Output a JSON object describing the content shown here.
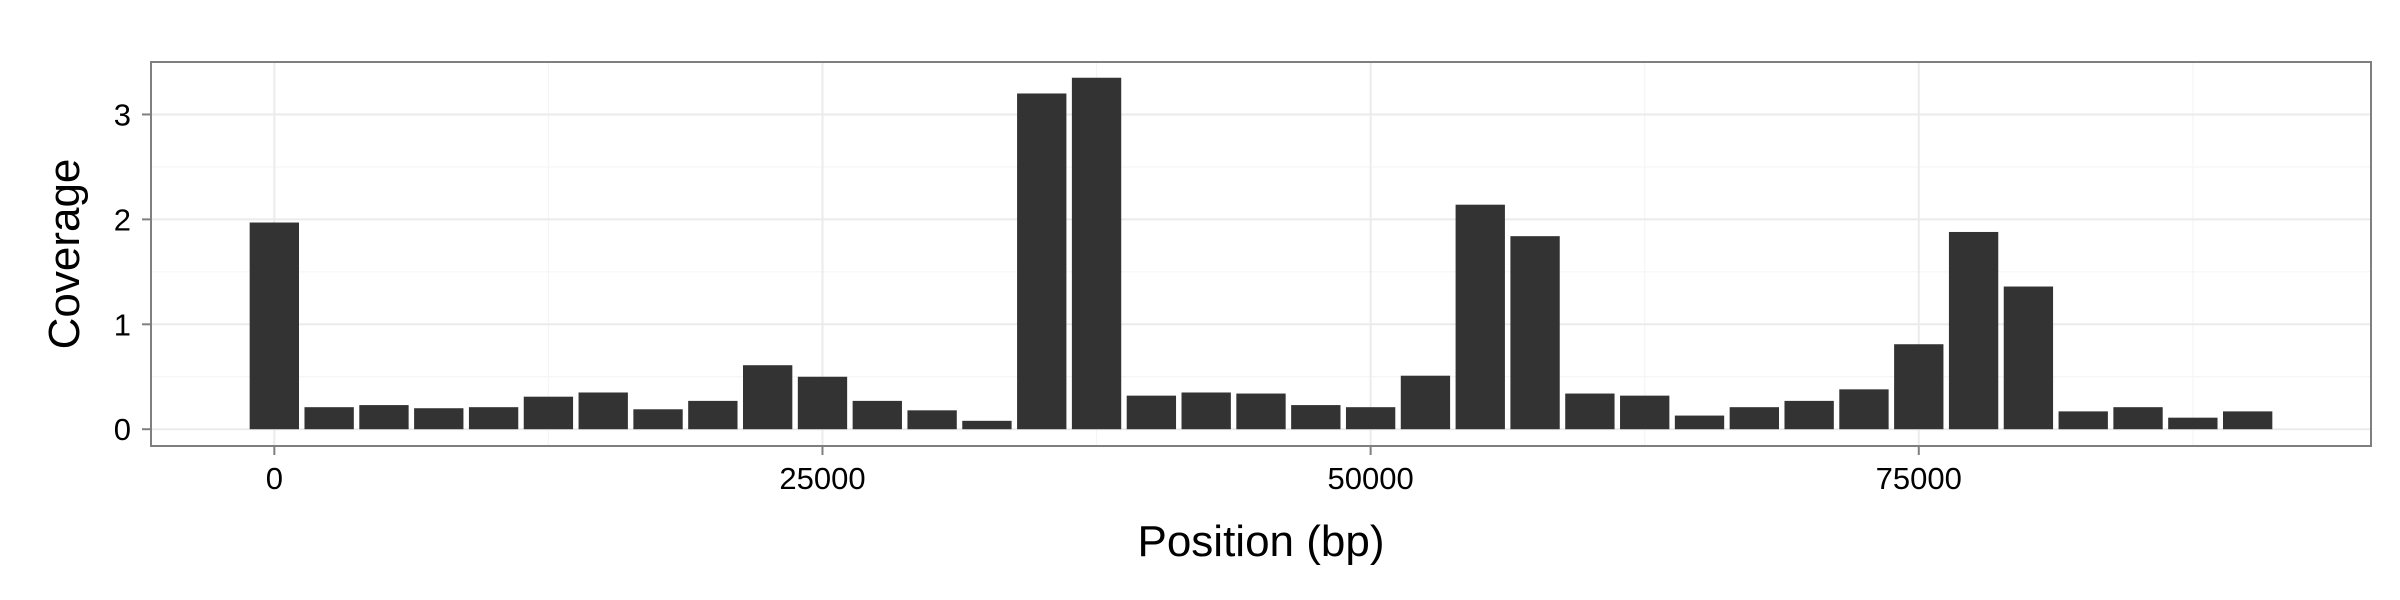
{
  "chart_data": {
    "type": "bar",
    "title": "",
    "xlabel": "Position (bp)",
    "ylabel": "Coverage",
    "x": [
      0,
      2500,
      5000,
      7500,
      10000,
      12500,
      15000,
      17500,
      20000,
      22500,
      25000,
      27500,
      30000,
      32500,
      35000,
      37500,
      40000,
      42500,
      45000,
      47500,
      50000,
      52500,
      55000,
      57500,
      60000,
      62500,
      65000,
      67500,
      70000,
      72500,
      75000,
      77500,
      80000,
      82500,
      85000,
      87500,
      90000
    ],
    "values": [
      1.97,
      0.21,
      0.23,
      0.2,
      0.21,
      0.31,
      0.35,
      0.19,
      0.27,
      0.61,
      0.5,
      0.27,
      0.18,
      0.08,
      3.2,
      3.35,
      0.32,
      0.35,
      0.34,
      0.23,
      0.21,
      0.51,
      2.14,
      1.84,
      0.34,
      0.32,
      0.13,
      0.21,
      0.27,
      0.38,
      0.81,
      1.88,
      1.36,
      0.17,
      0.21,
      0.11,
      0.17
    ],
    "bin_width": 2500,
    "xlim": [
      -5625,
      95625
    ],
    "ylim": [
      -0.16,
      3.5
    ],
    "x_ticks": [
      0,
      25000,
      50000,
      75000
    ],
    "x_tick_labels": [
      "0",
      "25000",
      "50000",
      "75000"
    ],
    "y_ticks": [
      0,
      1,
      2,
      3
    ],
    "y_tick_labels": [
      "0",
      "1",
      "2",
      "3"
    ],
    "grid": true,
    "legend": "none",
    "colors": {
      "bar": "#333333",
      "panel_border": "#7f7f7f",
      "grid_major": "#ebebeb",
      "grid_minor": "#f5f5f5",
      "axis_tick": "#7f7f7f"
    }
  }
}
